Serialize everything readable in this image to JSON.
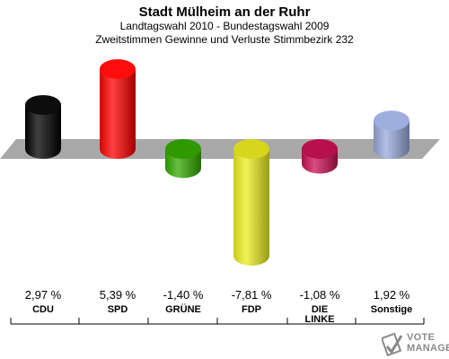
{
  "header": {
    "title": "Stadt Mülheim an der Ruhr",
    "subtitle": "Landtagswahl 2010 - Bundestagswahl 2009",
    "subtitle2": "Zweitstimmen Gewinne und Verluste Stimmbezirk 232"
  },
  "logo": {
    "line1": "VOTE",
    "line2": "MANAGER",
    "icon": "ballot-check-icon"
  },
  "chart_data": {
    "type": "bar",
    "title": "Stadt Mülheim an der Ruhr",
    "categories": [
      "CDU",
      "SPD",
      "GRÜNE",
      "FDP",
      "DIE LINKE",
      "Sonstige"
    ],
    "category_lines": [
      [
        "CDU"
      ],
      [
        "SPD"
      ],
      [
        "GRÜNE"
      ],
      [
        "FDP"
      ],
      [
        "DIE",
        "LINKE"
      ],
      [
        "Sonstige"
      ]
    ],
    "values": [
      2.97,
      5.39,
      -1.4,
      -7.81,
      -1.08,
      1.92
    ],
    "value_labels": [
      "2,97 %",
      "5,39 %",
      "-1,40 %",
      "-7,81 %",
      "-1,08 %",
      "1,92 %"
    ],
    "colors": [
      "#000000",
      "#ff0000",
      "#33aa00",
      "#eeee22",
      "#cc1155",
      "#99aadd"
    ],
    "ylim": [
      -7.81,
      5.39
    ],
    "grid": false,
    "legend": "none"
  }
}
